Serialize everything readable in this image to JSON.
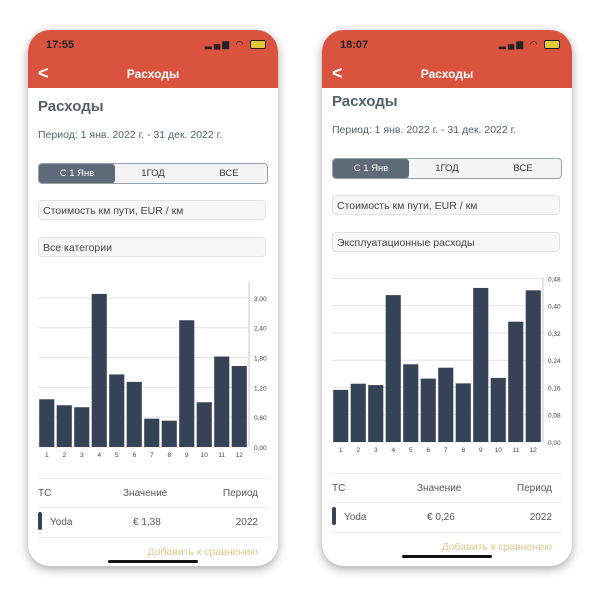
{
  "colors": {
    "header": "#d9533f",
    "bar": "#364256",
    "link": "#e0c88c"
  },
  "phones": [
    {
      "status_time": "17:55",
      "nav_title": "Расходы",
      "back_icon": "chevron-left",
      "heading": "Расходы",
      "period": "Период: 1 янв. 2022 г. - 31 дек. 2022 г.",
      "segments": [
        "С 1 Янв",
        "1ГОД",
        "ВСЕ"
      ],
      "selected_segment": 0,
      "metric": "Стоимость км пути, EUR / км",
      "category": "Все категории",
      "table": {
        "headers": [
          "ТС",
          "Значение",
          "Период"
        ],
        "rows": [
          {
            "vehicle": "Yoda",
            "value": "€ 1,38",
            "period": "2022"
          }
        ]
      },
      "add_link": "Добавить к сравнению"
    },
    {
      "status_time": "18:07",
      "nav_title": "Расходы",
      "back_icon": "chevron-left",
      "heading": "Расходы",
      "period": "Период: 1 янв. 2022 г. - 31 дек. 2022 г.",
      "segments": [
        "С 1 Янв",
        "1ГОД",
        "ВСЕ"
      ],
      "selected_segment": 0,
      "metric": "Стоимость км пути, EUR / км",
      "category": "Эксплуатационные расходы",
      "table": {
        "headers": [
          "ТС",
          "Значение",
          "Период"
        ],
        "rows": [
          {
            "vehicle": "Yoda",
            "value": "€ 0,26",
            "period": "2022"
          }
        ]
      },
      "add_link": "Добавить к сравнению"
    }
  ],
  "chart_data": [
    {
      "type": "bar",
      "categories": [
        "1",
        "2",
        "3",
        "4",
        "5",
        "6",
        "7",
        "8",
        "9",
        "10",
        "11",
        "12"
      ],
      "values": [
        0.96,
        0.84,
        0.8,
        3.08,
        1.46,
        1.31,
        0.57,
        0.53,
        2.55,
        0.9,
        1.82,
        1.63
      ],
      "yticks": [
        "0,00",
        "0,60",
        "1,20",
        "1,80",
        "2,40",
        "3,00"
      ],
      "ytick_values": [
        0,
        0.6,
        1.2,
        1.8,
        2.4,
        3.0
      ],
      "ylim": [
        0,
        3.36
      ],
      "grid": true,
      "y_axis_side": "right"
    },
    {
      "type": "bar",
      "categories": [
        "1",
        "2",
        "3",
        "4",
        "5",
        "6",
        "7",
        "8",
        "9",
        "10",
        "11",
        "12"
      ],
      "values": [
        0.153,
        0.171,
        0.167,
        0.431,
        0.228,
        0.186,
        0.218,
        0.172,
        0.452,
        0.188,
        0.353,
        0.445
      ],
      "yticks": [
        "0,00",
        "0,08",
        "0,16",
        "0,24",
        "0,32",
        "0,40",
        "0,48"
      ],
      "ytick_values": [
        0,
        0.08,
        0.16,
        0.24,
        0.32,
        0.4,
        0.48
      ],
      "ylim": [
        0,
        0.49
      ],
      "grid": true,
      "y_axis_side": "right"
    }
  ]
}
